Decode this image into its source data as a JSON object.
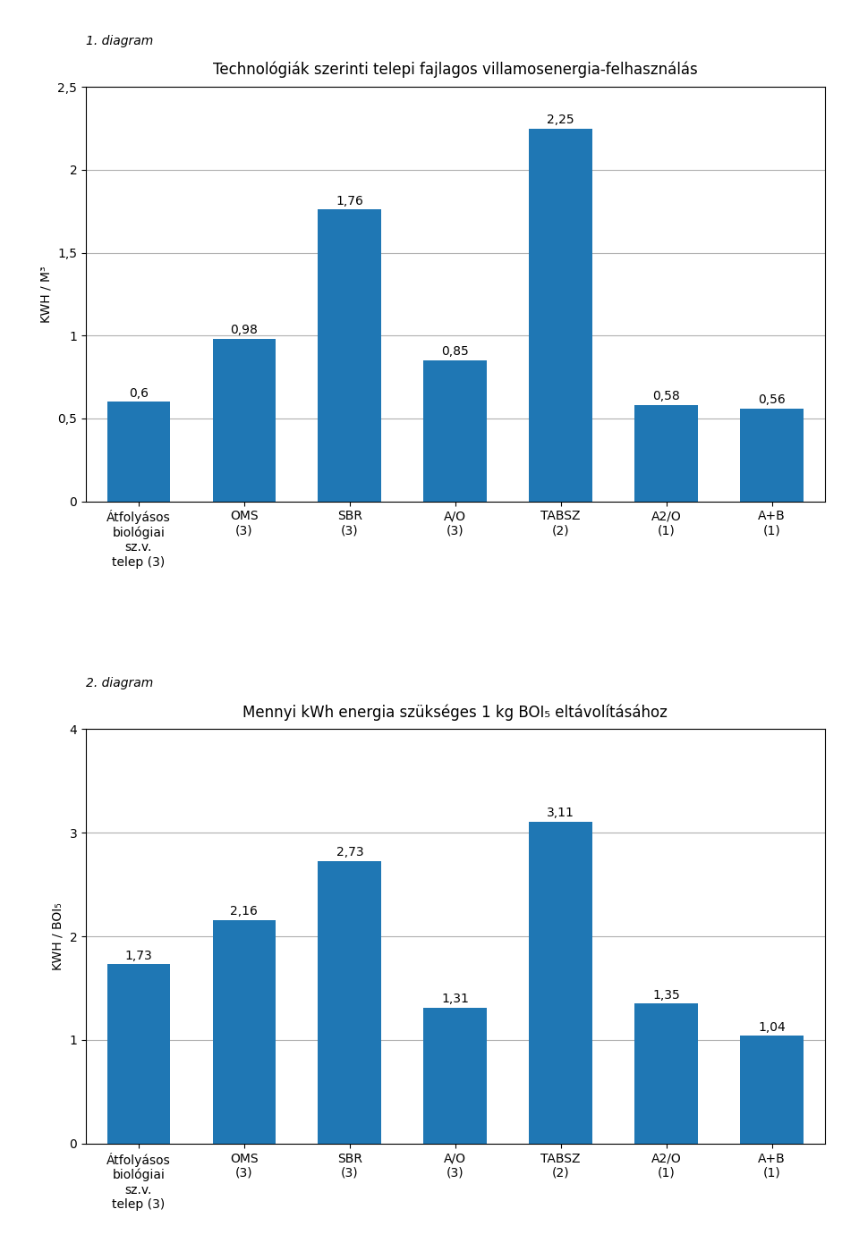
{
  "chart_data": [
    {
      "type": "bar",
      "subtitle": "1. diagram",
      "title": "Technológiák szerinti telepi fajlagos villamosenergia-felhasználás",
      "ylabel": "KWH / M³",
      "categories": [
        "Átfolyásos\nbiológiai\nsz.v.\ntelep (3)",
        "OMS\n(3)",
        "SBR\n(3)",
        "A/O\n(3)",
        "TABSZ\n(2)",
        "A2/O\n(1)",
        "A+B\n(1)"
      ],
      "values": [
        0.6,
        0.98,
        1.76,
        0.85,
        2.25,
        0.58,
        0.56
      ],
      "value_labels": [
        "0,6",
        "0,98",
        "1,76",
        "0,85",
        "2,25",
        "0,58",
        "0,56"
      ],
      "data_labels": true,
      "ylim": [
        0,
        2.5
      ],
      "yticks": [
        0,
        {
          "value": 0.5,
          "label": "0,5"
        },
        1,
        {
          "value": 1.5,
          "label": "1,5"
        },
        2,
        {
          "value": 2.5,
          "label": "2,5"
        }
      ],
      "grid": true
    },
    {
      "type": "bar",
      "subtitle": "2. diagram",
      "title": "Mennyi kWh energia szükséges 1 kg BOI₅ eltávolításához",
      "ylabel": "KWH / BOI₅",
      "categories": [
        "Átfolyásos\nbiológiai\nsz.v.\ntelep (3)",
        "OMS\n(3)",
        "SBR\n(3)",
        "A/O\n(3)",
        "TABSZ\n(2)",
        "A2/O\n(1)",
        "A+B\n(1)"
      ],
      "values": [
        1.73,
        2.16,
        2.73,
        1.31,
        3.11,
        1.35,
        1.04
      ],
      "value_labels": [
        "1,73",
        "2,16",
        "2,73",
        "1,31",
        "3,11",
        "1,35",
        "1,04"
      ],
      "data_labels": true,
      "ylim": [
        0,
        4
      ],
      "yticks": [
        0,
        1,
        2,
        3,
        4
      ],
      "grid": true
    }
  ]
}
